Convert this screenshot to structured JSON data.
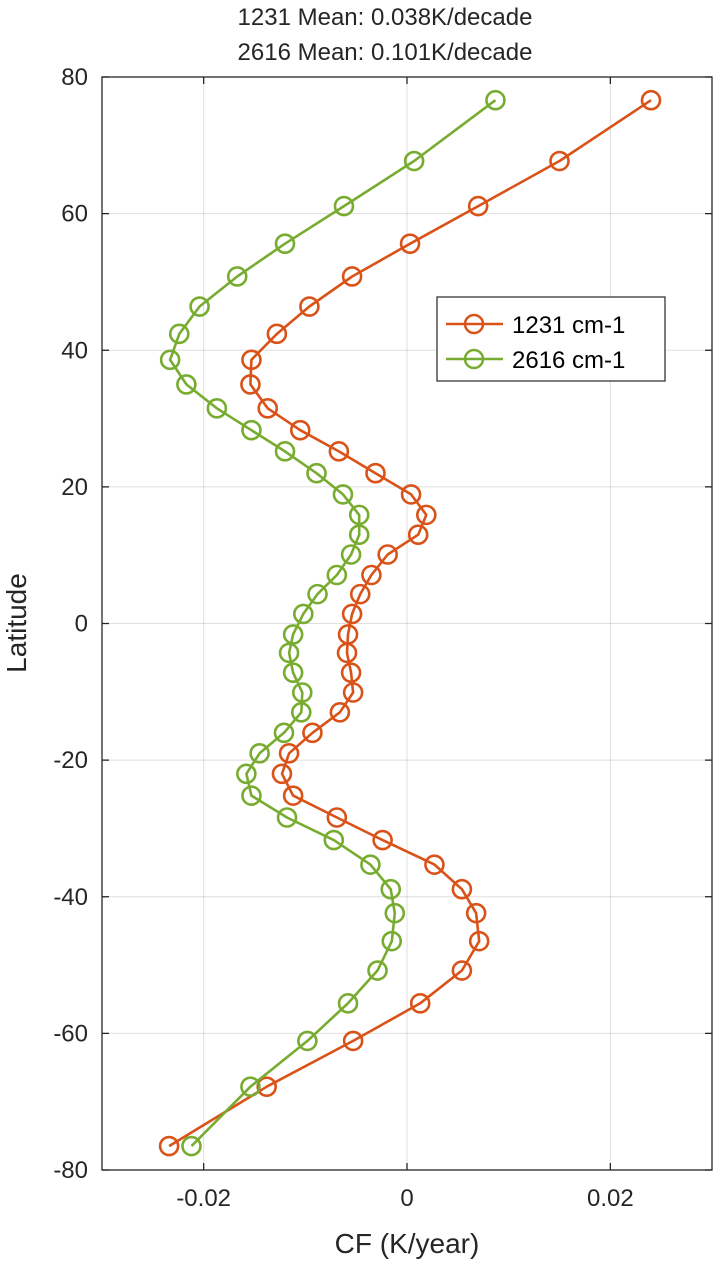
{
  "chart_data": {
    "type": "line",
    "title": [
      "1231 Mean: 0.038K/decade",
      "2616 Mean: 0.101K/decade"
    ],
    "xlabel": "CF (K/year)",
    "ylabel": "Latitude",
    "xlim": [
      -0.03,
      0.03
    ],
    "ylim": [
      -80,
      80
    ],
    "xticks": [
      -0.02,
      0,
      0.02
    ],
    "xtick_labels": [
      "-0.02",
      "0",
      "0.02"
    ],
    "yticks": [
      -80,
      -60,
      -40,
      -20,
      0,
      20,
      40,
      60,
      80
    ],
    "ytick_labels": [
      "-80",
      "-60",
      "-40",
      "-20",
      "0",
      "20",
      "40",
      "60",
      "80"
    ],
    "grid": true,
    "legend_position": "right",
    "series": [
      {
        "name": "1231 cm-1",
        "color": "#D95319",
        "marker": "circle",
        "points": [
          [
            0.024,
            76.6
          ],
          [
            0.015,
            67.7
          ],
          [
            0.007,
            61.1
          ],
          [
            0.0003,
            55.6
          ],
          [
            -0.0054,
            50.8
          ],
          [
            -0.0096,
            46.4
          ],
          [
            -0.0128,
            42.4
          ],
          [
            -0.0153,
            38.6
          ],
          [
            -0.0154,
            35.0
          ],
          [
            -0.0137,
            31.5
          ],
          [
            -0.0105,
            28.3
          ],
          [
            -0.0067,
            25.2
          ],
          [
            -0.0031,
            22.0
          ],
          [
            0.0004,
            18.9
          ],
          [
            0.0019,
            15.9
          ],
          [
            0.0011,
            13.0
          ],
          [
            -0.0019,
            10.1
          ],
          [
            -0.0035,
            7.1
          ],
          [
            -0.0046,
            4.3
          ],
          [
            -0.0054,
            1.4
          ],
          [
            -0.0058,
            -1.6
          ],
          [
            -0.0059,
            -4.3
          ],
          [
            -0.0055,
            -7.2
          ],
          [
            -0.0053,
            -10.1
          ],
          [
            -0.0066,
            -13.0
          ],
          [
            -0.0093,
            -16.0
          ],
          [
            -0.0116,
            -19.0
          ],
          [
            -0.0123,
            -22.0
          ],
          [
            -0.0112,
            -25.2
          ],
          [
            -0.0069,
            -28.4
          ],
          [
            -0.0024,
            -31.7
          ],
          [
            0.0027,
            -35.3
          ],
          [
            0.0054,
            -38.9
          ],
          [
            0.0068,
            -42.4
          ],
          [
            0.0071,
            -46.5
          ],
          [
            0.0054,
            -50.8
          ],
          [
            0.0013,
            -55.6
          ],
          [
            -0.0053,
            -61.1
          ],
          [
            -0.0138,
            -67.8
          ],
          [
            -0.0234,
            -76.5
          ]
        ]
      },
      {
        "name": "2616 cm-1",
        "color": "#77AC30",
        "marker": "circle",
        "points": [
          [
            0.0087,
            76.6
          ],
          [
            0.0007,
            67.7
          ],
          [
            -0.0062,
            61.1
          ],
          [
            -0.012,
            55.6
          ],
          [
            -0.0167,
            50.8
          ],
          [
            -0.0204,
            46.4
          ],
          [
            -0.0224,
            42.4
          ],
          [
            -0.0233,
            38.6
          ],
          [
            -0.0217,
            35.0
          ],
          [
            -0.0187,
            31.5
          ],
          [
            -0.0153,
            28.3
          ],
          [
            -0.012,
            25.2
          ],
          [
            -0.0089,
            22.0
          ],
          [
            -0.0063,
            18.9
          ],
          [
            -0.0047,
            15.9
          ],
          [
            -0.0047,
            13.0
          ],
          [
            -0.0055,
            10.1
          ],
          [
            -0.0069,
            7.1
          ],
          [
            -0.0088,
            4.3
          ],
          [
            -0.0102,
            1.4
          ],
          [
            -0.0112,
            -1.6
          ],
          [
            -0.0116,
            -4.3
          ],
          [
            -0.0112,
            -7.2
          ],
          [
            -0.0103,
            -10.1
          ],
          [
            -0.0104,
            -13.0
          ],
          [
            -0.0121,
            -16.0
          ],
          [
            -0.0145,
            -19.0
          ],
          [
            -0.0158,
            -22.0
          ],
          [
            -0.0153,
            -25.2
          ],
          [
            -0.0118,
            -28.4
          ],
          [
            -0.0072,
            -31.7
          ],
          [
            -0.0036,
            -35.3
          ],
          [
            -0.0016,
            -38.9
          ],
          [
            -0.0012,
            -42.4
          ],
          [
            -0.0015,
            -46.5
          ],
          [
            -0.0029,
            -50.8
          ],
          [
            -0.0058,
            -55.6
          ],
          [
            -0.0098,
            -61.1
          ],
          [
            -0.0154,
            -67.8
          ],
          [
            -0.0212,
            -76.5
          ]
        ]
      }
    ]
  }
}
